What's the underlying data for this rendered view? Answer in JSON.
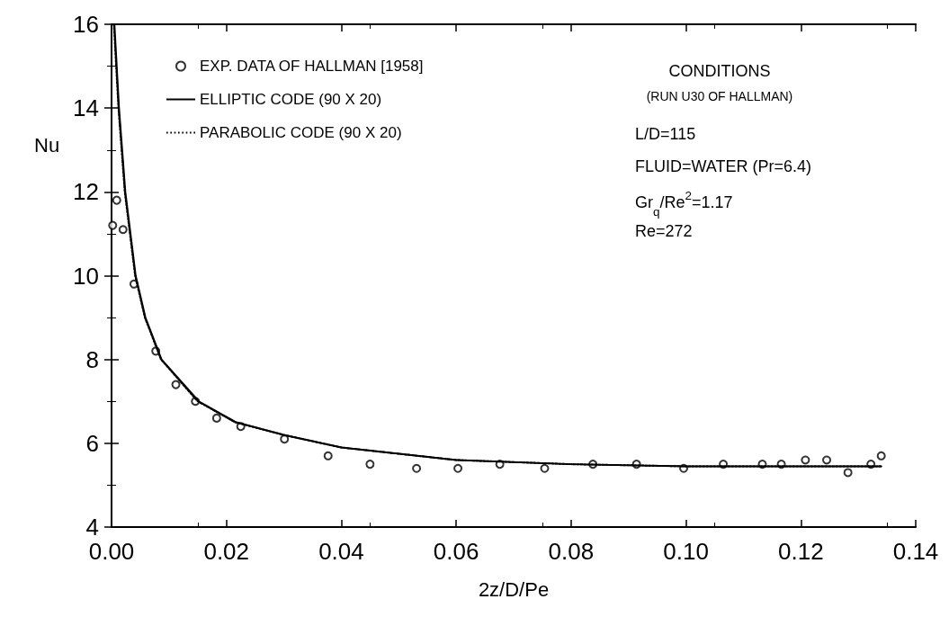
{
  "chart_data": {
    "type": "line",
    "xlabel": "2z/D/Pe",
    "ylabel": "Nu",
    "xlim": [
      0,
      0.14
    ],
    "xticks": [
      {
        "value": 0,
        "label": "0.00"
      },
      {
        "value": 0.02,
        "label": "0.02"
      },
      {
        "value": 0.04,
        "label": "0.04"
      },
      {
        "value": 0.06,
        "label": "0.06"
      },
      {
        "value": 0.08,
        "label": "0.08"
      },
      {
        "value": 0.1,
        "label": "0.10"
      },
      {
        "value": 0.12,
        "label": "0.12"
      },
      {
        "value": 0.14,
        "label": "0.14"
      }
    ],
    "ylim": [
      4,
      16
    ],
    "yticks": [
      4,
      6,
      8,
      10,
      12,
      14,
      16
    ],
    "grid": false,
    "legend": "top left",
    "series": [
      {
        "name": "EXP. DATA OF HALLMAN [1958]",
        "type": "scatter",
        "marker": "circle",
        "color": "#000000",
        "x": [
          0.0002,
          0.0009,
          0.002,
          0.0039,
          0.0077,
          0.0112,
          0.0146,
          0.0183,
          0.0225,
          0.0301,
          0.0377,
          0.045,
          0.0531,
          0.0603,
          0.0676,
          0.0754,
          0.0838,
          0.0914,
          0.0996,
          0.1065,
          0.1133,
          0.1166,
          0.1208,
          0.1245,
          0.1282,
          0.1322,
          0.134
        ],
        "values": [
          11.2,
          11.8,
          11.1,
          9.8,
          8.2,
          7.4,
          7.0,
          6.6,
          6.4,
          6.1,
          5.7,
          5.5,
          5.4,
          5.4,
          5.5,
          5.4,
          5.5,
          5.5,
          5.4,
          5.5,
          5.5,
          5.5,
          5.6,
          5.6,
          5.3,
          5.5,
          5.7
        ]
      },
      {
        "name": "ELLIPTIC CODE (90 X 20)",
        "line_style": "solid",
        "color": "#000000",
        "x": [
          0.0005,
          0.0013,
          0.0024,
          0.0042,
          0.0059,
          0.0087,
          0.0152,
          0.0217,
          0.0299,
          0.04,
          0.06,
          0.08,
          0.1,
          0.12,
          0.134
        ],
        "values": [
          16,
          14,
          12,
          10,
          9,
          8,
          7,
          6.5,
          6.2,
          5.9,
          5.6,
          5.5,
          5.45,
          5.45,
          5.45
        ]
      },
      {
        "name": "PARABOLIC CODE (90 X 20)",
        "line_style": "dotted",
        "color": "#000000",
        "x": [
          0.0004,
          0.0012,
          0.0023,
          0.0041,
          0.0058,
          0.0086,
          0.015,
          0.0215,
          0.03,
          0.04,
          0.06,
          0.08,
          0.1,
          0.12,
          0.134
        ],
        "values": [
          16,
          14,
          12,
          10,
          9,
          8,
          7,
          6.5,
          6.2,
          5.9,
          5.6,
          5.5,
          5.45,
          5.45,
          5.45
        ]
      }
    ],
    "annotations": [
      "CONDITIONS",
      "(RUN U30 OF HALLMAN)",
      "L/D=115",
      "FLUID=WATER (Pr=6.4)",
      "Gr$_{q}$/Re$^{2}$=1.17",
      "Re=272"
    ]
  }
}
